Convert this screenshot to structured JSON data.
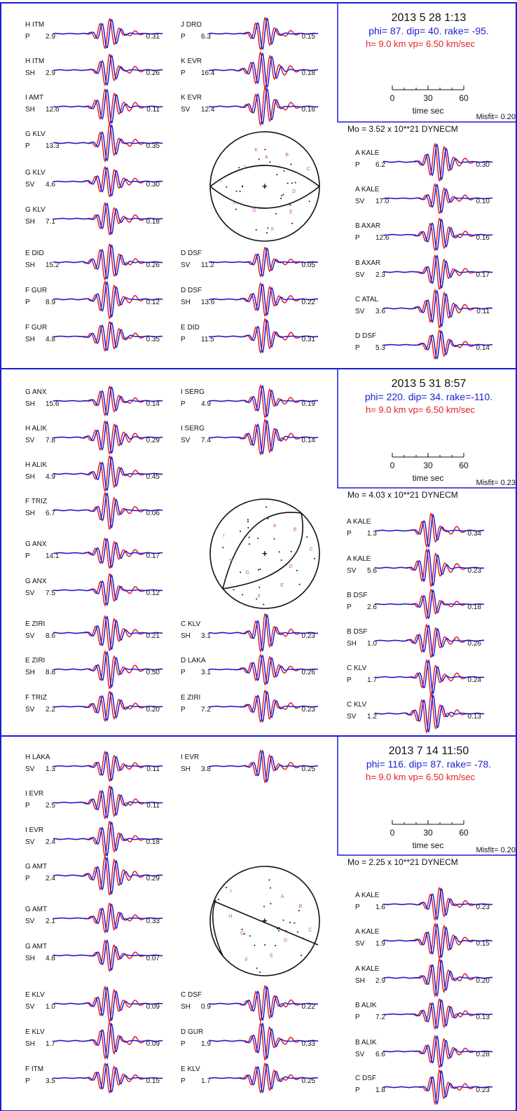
{
  "colors": {
    "frame": "#1c1cd6",
    "observed": "#e32020",
    "synthetic": "#1c1cd6",
    "text": "#111111",
    "annotation": "#d33ad3"
  },
  "chart_data": [
    {
      "type": "waveform-panel",
      "event": {
        "date": "2013  5 28",
        "time": "1:13",
        "solution": "phi=  87. dip= 40. rake= -95.",
        "depth": "h=  9.0 km  vp= 6.50 km/sec"
      },
      "time_scale": {
        "ticks": [
          "0",
          "30",
          "60"
        ],
        "label": "time  sec"
      },
      "misfit": "Misfit= 0.20",
      "moment": "Mo = 3.52 x 10**21 DYNECM",
      "beachball": {
        "center_mark": "+",
        "station_labels": [
          "A",
          "B",
          "C",
          "D",
          "E",
          "F",
          "G",
          "H",
          "I",
          "J",
          "K"
        ]
      },
      "traces": [
        {
          "id": "H ITM",
          "phase": "P",
          "azimuth_value": "2.9",
          "misfit": "0.31"
        },
        {
          "id": "H ITM",
          "phase": "SH",
          "azimuth_value": "2.9",
          "misfit": "0.26"
        },
        {
          "id": "I AMT",
          "phase": "SH",
          "azimuth_value": "12.6",
          "misfit": "0.11"
        },
        {
          "id": "G KLV",
          "phase": "P",
          "azimuth_value": "13.3",
          "misfit": "0.35"
        },
        {
          "id": "G KLV",
          "phase": "SV",
          "azimuth_value": "4.6",
          "misfit": "0.30"
        },
        {
          "id": "G KLV",
          "phase": "SH",
          "azimuth_value": "7.1",
          "misfit": "0.18"
        },
        {
          "id": "E DID",
          "phase": "SH",
          "azimuth_value": "15.2",
          "misfit": "0.26"
        },
        {
          "id": "F GUR",
          "phase": "P",
          "azimuth_value": "8.9",
          "misfit": "0.12"
        },
        {
          "id": "F GUR",
          "phase": "SH",
          "azimuth_value": "4.8",
          "misfit": "0.35"
        },
        {
          "id": "J DRO",
          "phase": "P",
          "azimuth_value": "6.3",
          "misfit": "0.15"
        },
        {
          "id": "K EVR",
          "phase": "P",
          "azimuth_value": "16.4",
          "misfit": "0.18"
        },
        {
          "id": "K EVR",
          "phase": "SV",
          "azimuth_value": "12.4",
          "misfit": "0.16"
        },
        {
          "id": "D DSF",
          "phase": "SV",
          "azimuth_value": "11.2",
          "misfit": "0.05"
        },
        {
          "id": "D DSF",
          "phase": "SH",
          "azimuth_value": "13.6",
          "misfit": "0.22"
        },
        {
          "id": "E DID",
          "phase": "P",
          "azimuth_value": "11.5",
          "misfit": "0.31"
        },
        {
          "id": "A KALE",
          "phase": "P",
          "azimuth_value": "6.2",
          "misfit": "0.30"
        },
        {
          "id": "A KALE",
          "phase": "SV",
          "azimuth_value": "17.0",
          "misfit": "0.10"
        },
        {
          "id": "B AXAR",
          "phase": "P",
          "azimuth_value": "12.6",
          "misfit": "0.16"
        },
        {
          "id": "B AXAR",
          "phase": "SV",
          "azimuth_value": "2.3",
          "misfit": "0.17"
        },
        {
          "id": "C ATAL",
          "phase": "SV",
          "azimuth_value": "3.6",
          "misfit": "0.11"
        },
        {
          "id": "D DSF",
          "phase": "P",
          "azimuth_value": "5.3",
          "misfit": "0.14"
        }
      ]
    },
    {
      "type": "waveform-panel",
      "event": {
        "date": "2013  5 31",
        "time": "8:57",
        "solution": "phi= 220. dip= 34. rake=-110.",
        "depth": "h=  9.0 km  vp= 6.50 km/sec"
      },
      "time_scale": {
        "ticks": [
          "0",
          "30",
          "60"
        ],
        "label": "time  sec"
      },
      "misfit": "Misfit= 0.23",
      "moment": "Mo = 4.03 x 10**21 DYNECM",
      "beachball": {
        "center_mark": "+",
        "station_labels": [
          "A",
          "B",
          "C",
          "D",
          "E",
          "F",
          "G",
          "H",
          "I"
        ]
      },
      "traces": [
        {
          "id": "G ANX",
          "phase": "SH",
          "azimuth_value": "15.6",
          "misfit": "0.14"
        },
        {
          "id": "H ALIK",
          "phase": "SV",
          "azimuth_value": "7.8",
          "misfit": "0.29"
        },
        {
          "id": "H ALIK",
          "phase": "SH",
          "azimuth_value": "4.9",
          "misfit": "0.45"
        },
        {
          "id": "F TRIZ",
          "phase": "SH",
          "azimuth_value": "6.7",
          "misfit": "0.06"
        },
        {
          "id": "G ANX",
          "phase": "P",
          "azimuth_value": "14.1",
          "misfit": "0.17"
        },
        {
          "id": "G ANX",
          "phase": "SV",
          "azimuth_value": "7.5",
          "misfit": "0.12"
        },
        {
          "id": "E ZIRI",
          "phase": "SV",
          "azimuth_value": "8.6",
          "misfit": "0.21"
        },
        {
          "id": "E ZIRI",
          "phase": "SH",
          "azimuth_value": "8.8",
          "misfit": "0.50"
        },
        {
          "id": "F TRIZ",
          "phase": "SV",
          "azimuth_value": "2.2",
          "misfit": "0.20"
        },
        {
          "id": "I SERG",
          "phase": "P",
          "azimuth_value": "4.9",
          "misfit": "0.19"
        },
        {
          "id": "I SERG",
          "phase": "SV",
          "azimuth_value": "7.4",
          "misfit": "0.14"
        },
        {
          "id": "C KLV",
          "phase": "SH",
          "azimuth_value": "3.1",
          "misfit": "0.23"
        },
        {
          "id": "D LAKA",
          "phase": "P",
          "azimuth_value": "3.1",
          "misfit": "0.26"
        },
        {
          "id": "E ZIRI",
          "phase": "P",
          "azimuth_value": "7.2",
          "misfit": "0.23"
        },
        {
          "id": "A KALE",
          "phase": "P",
          "azimuth_value": "1.3",
          "misfit": "0.34"
        },
        {
          "id": "A KALE",
          "phase": "SV",
          "azimuth_value": "5.6",
          "misfit": "0.23"
        },
        {
          "id": "B DSF",
          "phase": "P",
          "azimuth_value": "2.6",
          "misfit": "0.18"
        },
        {
          "id": "B DSF",
          "phase": "SH",
          "azimuth_value": "1.0",
          "misfit": "0.26"
        },
        {
          "id": "C KLV",
          "phase": "P",
          "azimuth_value": "1.7",
          "misfit": "0.24"
        },
        {
          "id": "C KLV",
          "phase": "SV",
          "azimuth_value": "1.2",
          "misfit": "0.13"
        }
      ]
    },
    {
      "type": "waveform-panel",
      "event": {
        "date": "2013  7 14",
        "time": "11:50",
        "solution": "phi= 116. dip= 87. rake= -78.",
        "depth": "h=  9.0 km  vp= 6.50 km/sec"
      },
      "time_scale": {
        "ticks": [
          "0",
          "30",
          "60"
        ],
        "label": "time  sec"
      },
      "misfit": "Misfit= 0.20",
      "moment": "Mo = 2.25 x 10**21 DYNECM",
      "beachball": {
        "center_mark": "+",
        "station_labels": [
          "A",
          "B",
          "C",
          "D",
          "E",
          "F",
          "G",
          "H",
          "I"
        ]
      },
      "traces": [
        {
          "id": "H LAKA",
          "phase": "SV",
          "azimuth_value": "1.3",
          "misfit": "0.11"
        },
        {
          "id": "I EVR",
          "phase": "P",
          "azimuth_value": "2.5",
          "misfit": "0.11"
        },
        {
          "id": "I EVR",
          "phase": "SV",
          "azimuth_value": "2.4",
          "misfit": "0.18"
        },
        {
          "id": "G AMT",
          "phase": "P",
          "azimuth_value": "2.4",
          "misfit": "0.29"
        },
        {
          "id": "G AMT",
          "phase": "SV",
          "azimuth_value": "2.1",
          "misfit": "0.33"
        },
        {
          "id": "G AMT",
          "phase": "SH",
          "azimuth_value": "4.8",
          "misfit": "0.07"
        },
        {
          "id": "E KLV",
          "phase": "SV",
          "azimuth_value": "1.0",
          "misfit": "0.09"
        },
        {
          "id": "E KLV",
          "phase": "SH",
          "azimuth_value": "1.7",
          "misfit": "0.09"
        },
        {
          "id": "F ITM",
          "phase": "P",
          "azimuth_value": "3.5",
          "misfit": "0.15"
        },
        {
          "id": "I EVR",
          "phase": "SH",
          "azimuth_value": "3.8",
          "misfit": "0.25"
        },
        {
          "id": "C DSF",
          "phase": "SH",
          "azimuth_value": "0.9",
          "misfit": "0.22"
        },
        {
          "id": "D GUR",
          "phase": "P",
          "azimuth_value": "1.9",
          "misfit": "0.33"
        },
        {
          "id": "E KLV",
          "phase": "P",
          "azimuth_value": "1.7",
          "misfit": "0.25"
        },
        {
          "id": "A KALE",
          "phase": "P",
          "azimuth_value": "1.6",
          "misfit": "0.23"
        },
        {
          "id": "A KALE",
          "phase": "SV",
          "azimuth_value": "1.9",
          "misfit": "0.15"
        },
        {
          "id": "A KALE",
          "phase": "SH",
          "azimuth_value": "2.9",
          "misfit": "0.20"
        },
        {
          "id": "B ALIK",
          "phase": "P",
          "azimuth_value": "7.2",
          "misfit": "0.13"
        },
        {
          "id": "B ALIK",
          "phase": "SV",
          "azimuth_value": "6.6",
          "misfit": "0.28"
        },
        {
          "id": "C DSF",
          "phase": "P",
          "azimuth_value": "1.8",
          "misfit": "0.23"
        }
      ]
    }
  ]
}
